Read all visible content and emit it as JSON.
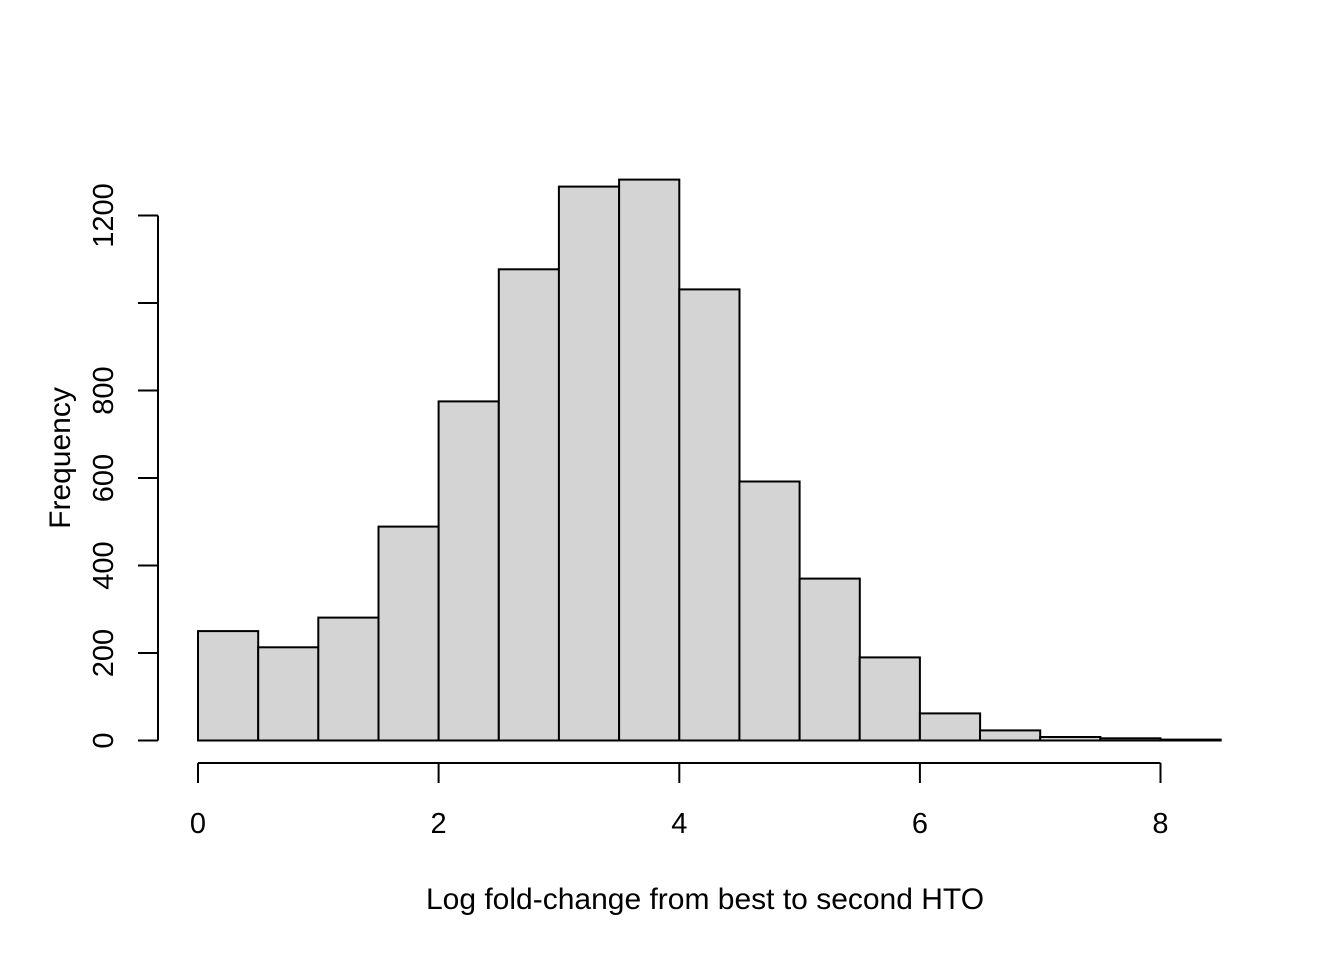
{
  "chart_data": {
    "type": "bar",
    "subtype": "histogram",
    "title": "",
    "xlabel": "Log fold-change from best to second HTO",
    "ylabel": "Frequency",
    "xlim": [
      0,
      8.5
    ],
    "ylim": [
      0,
      1282
    ],
    "grid": false,
    "legend": "none",
    "bin_width": 0.5,
    "breaks": [
      0,
      0.5,
      1,
      1.5,
      2,
      2.5,
      3,
      3.5,
      4,
      4.5,
      5,
      5.5,
      6,
      6.5,
      7,
      7.5,
      8,
      8.5
    ],
    "counts": [
      250,
      213,
      281,
      489,
      775,
      1077,
      1266,
      1282,
      1031,
      592,
      370,
      190,
      62,
      23,
      8,
      5,
      2
    ],
    "x_ticks": [
      {
        "value": 0,
        "label": "0"
      },
      {
        "value": 2,
        "label": "2"
      },
      {
        "value": 4,
        "label": "4"
      },
      {
        "value": 6,
        "label": "6"
      },
      {
        "value": 8,
        "label": "8"
      }
    ],
    "y_ticks": [
      {
        "value": 0,
        "label": "0"
      },
      {
        "value": 200,
        "label": "200"
      },
      {
        "value": 400,
        "label": "400"
      },
      {
        "value": 600,
        "label": "600"
      },
      {
        "value": 800,
        "label": "800"
      },
      {
        "value": 1000,
        "label": ""
      },
      {
        "value": 1200,
        "label": "1200"
      }
    ],
    "colors": {
      "bar_fill": "#d4d4d4",
      "bar_stroke": "#000000",
      "axis": "#000000",
      "background": "#ffffff"
    }
  }
}
